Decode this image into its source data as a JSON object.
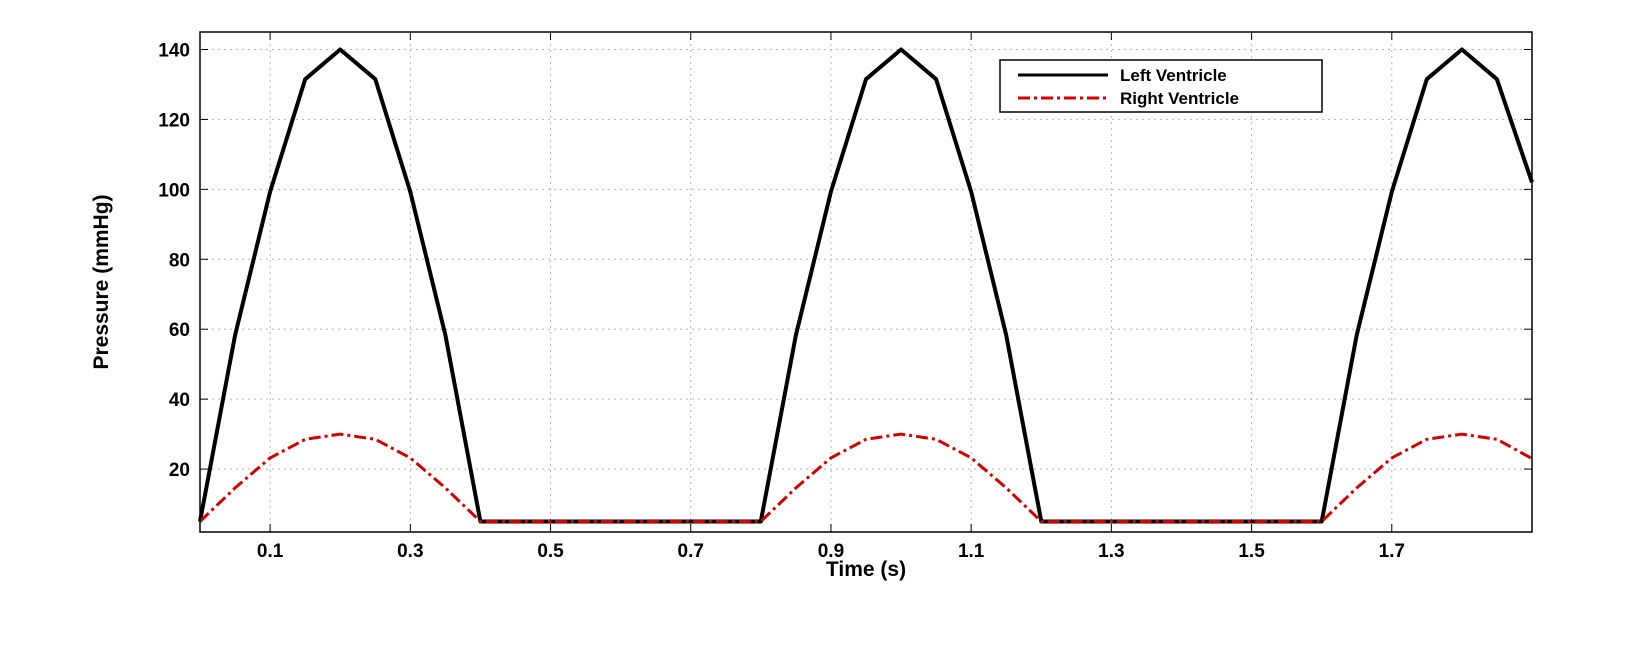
{
  "chart_data": {
    "type": "line",
    "xlabel": "Time (s)",
    "ylabel": "Pressure (mmHg)",
    "xlim": [
      0,
      1.9
    ],
    "ylim": [
      2,
      145
    ],
    "xticks": [
      "0.1",
      "0.3",
      "0.5",
      "0.7",
      "0.9",
      "1.1",
      "1.3",
      "1.5",
      "1.7"
    ],
    "yticks": [
      "20",
      "40",
      "60",
      "80",
      "100",
      "120",
      "140"
    ],
    "grid": true,
    "legend_position": "top-right",
    "series": [
      {
        "name": "Left Ventricle",
        "color": "#000000",
        "style": "solid",
        "x": [
          0,
          0.05,
          0.1,
          0.15,
          0.2,
          0.25,
          0.3,
          0.35,
          0.4,
          0.5,
          0.6,
          0.7,
          0.8,
          0.85,
          0.9,
          0.95,
          1.0,
          1.05,
          1.1,
          1.15,
          1.2,
          1.3,
          1.4,
          1.5,
          1.6,
          1.65,
          1.7,
          1.75,
          1.8,
          1.85,
          1.9
        ],
        "values": [
          5,
          58.3,
          99.3,
          131.5,
          140,
          131.5,
          99.3,
          58.3,
          5,
          5,
          5,
          5,
          5,
          58.3,
          99.3,
          131.5,
          140,
          131.5,
          99.3,
          58.3,
          5,
          5,
          5,
          5,
          5,
          58.3,
          99.3,
          131.5,
          140,
          131.5,
          102
        ]
      },
      {
        "name": "Right Ventricle",
        "color": "#d40000",
        "style": "dash-dot",
        "x": [
          0,
          0.05,
          0.1,
          0.15,
          0.2,
          0.25,
          0.3,
          0.35,
          0.4,
          0.5,
          0.6,
          0.7,
          0.8,
          0.85,
          0.9,
          0.95,
          1.0,
          1.05,
          1.1,
          1.15,
          1.2,
          1.3,
          1.4,
          1.5,
          1.6,
          1.65,
          1.7,
          1.75,
          1.8,
          1.85,
          1.9
        ],
        "values": [
          5,
          14.6,
          23.2,
          28.5,
          30,
          28.5,
          23.2,
          14.6,
          5,
          5,
          5,
          5,
          5,
          14.6,
          23.2,
          28.5,
          30,
          28.5,
          23.2,
          14.6,
          5,
          5,
          5,
          5,
          5,
          14.6,
          23.2,
          28.5,
          30,
          28.5,
          23
        ]
      }
    ]
  }
}
